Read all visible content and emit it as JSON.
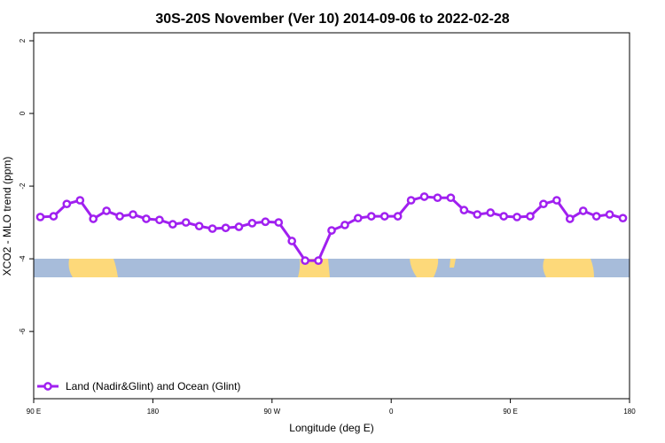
{
  "chart_data": {
    "type": "line",
    "title": "30S-20S November (Ver 10)   2014-09-06 to 2022-02-28",
    "x_label": "Longitude (deg E)",
    "y_label": "XCO2 - MLO trend (ppm)",
    "x": [
      95,
      105,
      115,
      125,
      135,
      145,
      155,
      165,
      175,
      185,
      195,
      205,
      215,
      225,
      235,
      245,
      255,
      265,
      275,
      285,
      295,
      305,
      315,
      325,
      335,
      345,
      355,
      365,
      375,
      385,
      395,
      405,
      415,
      425,
      435,
      445,
      455,
      465,
      475,
      485,
      495,
      505,
      515,
      525,
      535
    ],
    "series": [
      {
        "name": "Land (Nadir&Glint) and Ocean (Glint)",
        "color": "#a020f0",
        "values": [
          -2.85,
          -2.83,
          -2.49,
          -2.39,
          -2.9,
          -2.68,
          -2.83,
          -2.78,
          -2.9,
          -2.93,
          -3.05,
          -3.0,
          -3.1,
          -3.17,
          -3.15,
          -3.12,
          -3.02,
          -2.98,
          -3.0,
          -3.51,
          -4.05,
          -4.05,
          -3.22,
          -3.07,
          -2.88,
          -2.83,
          -2.83,
          -2.83,
          -2.39,
          -2.29,
          -2.32,
          -2.32,
          -2.66,
          -2.78,
          -2.73,
          -2.83,
          -2.85,
          -2.83,
          -2.49,
          -2.39,
          -2.9,
          -2.68,
          -2.83,
          -2.78,
          -2.88
        ]
      }
    ],
    "xlim": [
      90,
      540
    ],
    "xticks": [
      {
        "value": 90,
        "label": "90 E"
      },
      180,
      {
        "value": 270,
        "label": "90 W"
      },
      {
        "value": 360,
        "label": "0"
      },
      {
        "value": 450,
        "label": "90 E"
      },
      {
        "value": 540,
        "label": "180"
      }
    ],
    "ylim": [
      -7.85,
      2.22
    ],
    "yticks": [
      -6,
      -4,
      -2,
      0,
      2
    ],
    "legend": "bottom-left"
  }
}
